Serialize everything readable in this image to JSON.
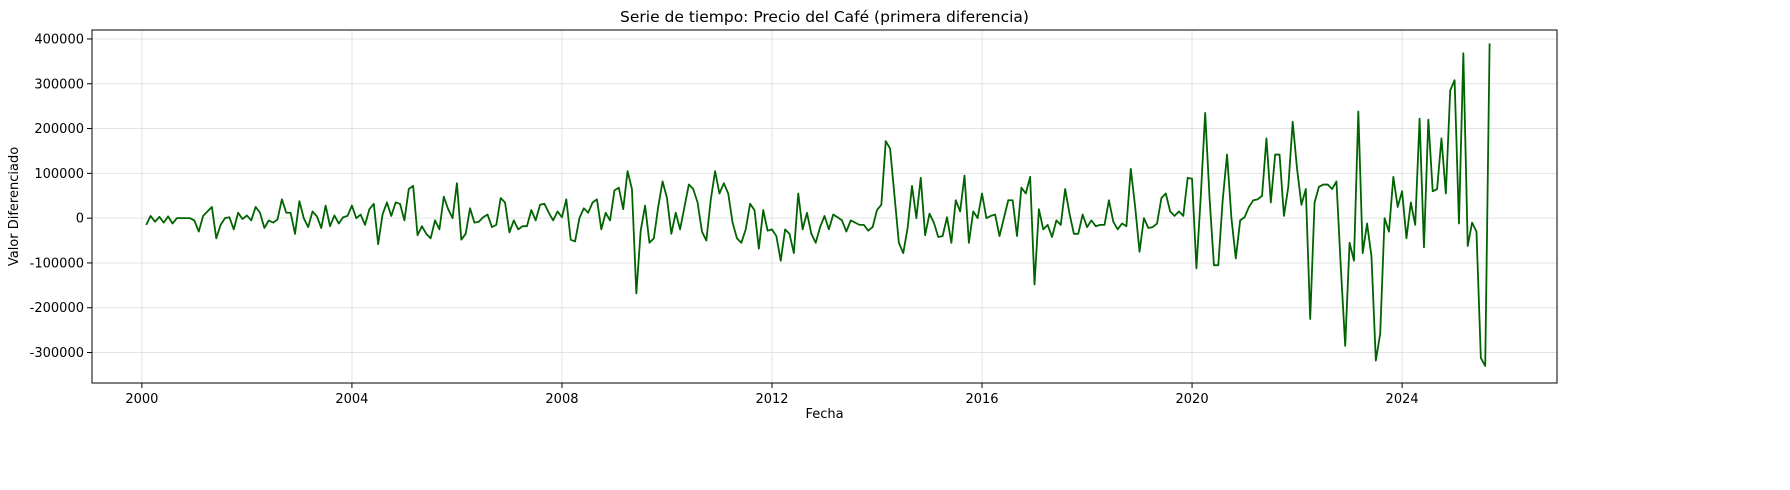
{
  "chart_data": {
    "type": "line",
    "title": "Serie de tiempo: Precio del Café (primera diferencia)",
    "xlabel": "Fecha",
    "ylabel": "Valor Diferenciado",
    "xlim": [
      1999.05,
      2026.95
    ],
    "ylim": [
      -368000,
      420000
    ],
    "x_ticks": [
      2000,
      2004,
      2008,
      2012,
      2016,
      2020,
      2024
    ],
    "y_ticks": [
      -300000,
      -200000,
      -100000,
      0,
      100000,
      200000,
      300000,
      400000
    ],
    "grid": true,
    "line_color": "#006400",
    "series": [
      {
        "x_start": 2000.083,
        "x_step": 0.0833333,
        "values": [
          -15000,
          5000,
          -8000,
          3000,
          -10000,
          4000,
          -12000,
          0,
          0,
          0,
          0,
          -5000,
          -30000,
          5000,
          15000,
          25000,
          -45000,
          -15000,
          0,
          2000,
          -25000,
          12000,
          -2000,
          6000,
          -5000,
          25000,
          12000,
          -22000,
          -5000,
          -10000,
          -3000,
          42000,
          12000,
          12000,
          -35000,
          38000,
          0,
          -20000,
          15000,
          4000,
          -22000,
          28000,
          -18000,
          6000,
          -12000,
          2000,
          5000,
          28000,
          0,
          8000,
          -15000,
          20000,
          32000,
          -58000,
          8000,
          35000,
          5000,
          35000,
          32000,
          -5000,
          65000,
          72000,
          -38000,
          -18000,
          -35000,
          -45000,
          -5000,
          -25000,
          48000,
          20000,
          0,
          78000,
          -48000,
          -35000,
          22000,
          -10000,
          -8000,
          2000,
          8000,
          -20000,
          -15000,
          45000,
          35000,
          -32000,
          -5000,
          -25000,
          -18000,
          -18000,
          18000,
          -5000,
          30000,
          32000,
          12000,
          -5000,
          15000,
          2000,
          42000,
          -48000,
          -52000,
          0,
          22000,
          12000,
          35000,
          42000,
          -25000,
          12000,
          -5000,
          62000,
          68000,
          20000,
          105000,
          65000,
          -168000,
          -28000,
          28000,
          -55000,
          -45000,
          25000,
          82000,
          45000,
          -35000,
          12000,
          -25000,
          25000,
          75000,
          65000,
          35000,
          -30000,
          -50000,
          40000,
          105000,
          55000,
          78000,
          55000,
          -10000,
          -45000,
          -55000,
          -25000,
          32000,
          18000,
          -68000,
          18000,
          -28000,
          -25000,
          -40000,
          -95000,
          -25000,
          -35000,
          -78000,
          55000,
          -25000,
          12000,
          -35000,
          -55000,
          -20000,
          5000,
          -25000,
          8000,
          2000,
          -5000,
          -30000,
          -5000,
          -10000,
          -15000,
          -15000,
          -28000,
          -20000,
          18000,
          30000,
          172000,
          155000,
          50000,
          -55000,
          -78000,
          -22000,
          72000,
          0,
          90000,
          -38000,
          10000,
          -10000,
          -42000,
          -40000,
          2000,
          -55000,
          40000,
          15000,
          95000,
          -55000,
          15000,
          0,
          55000,
          0,
          5000,
          8000,
          -40000,
          0,
          40000,
          40000,
          -40000,
          68000,
          55000,
          92000,
          -148000,
          20000,
          -25000,
          -15000,
          -42000,
          -5000,
          -15000,
          65000,
          10000,
          -35000,
          -35000,
          8000,
          -20000,
          -5000,
          -18000,
          -15000,
          -15000,
          40000,
          -8000,
          -25000,
          -12000,
          -18000,
          110000,
          25000,
          -75000,
          0,
          -22000,
          -20000,
          -12000,
          45000,
          55000,
          15000,
          5000,
          15000,
          5000,
          90000,
          88000,
          -112000,
          50000,
          235000,
          45000,
          -105000,
          -105000,
          40000,
          142000,
          0,
          -90000,
          -5000,
          2000,
          25000,
          40000,
          42000,
          50000,
          178000,
          35000,
          142000,
          142000,
          5000,
          70000,
          215000,
          110000,
          30000,
          65000,
          -225000,
          35000,
          70000,
          75000,
          75000,
          65000,
          82000,
          -110000,
          -285000,
          -55000,
          -95000,
          238000,
          -78000,
          -12000,
          -85000,
          -318000,
          -258000,
          0,
          -30000,
          92000,
          25000,
          60000,
          -45000,
          35000,
          -15000,
          222000,
          -65000,
          220000,
          60000,
          65000,
          178000,
          55000,
          285000,
          308000,
          -12000,
          368000,
          -62000,
          -10000,
          -30000,
          -312000,
          -330000,
          390000
        ]
      }
    ]
  }
}
